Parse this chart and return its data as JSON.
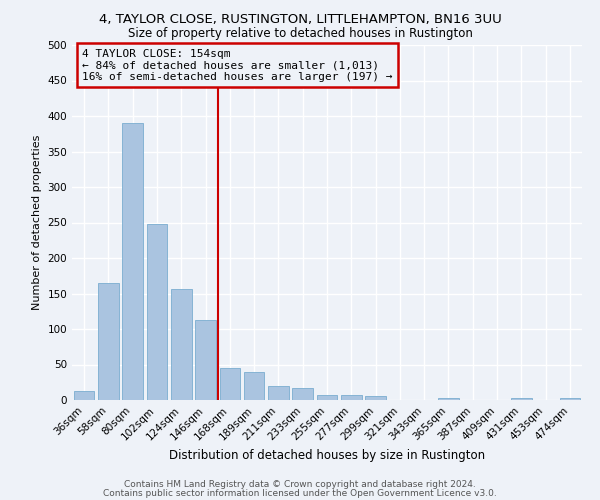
{
  "title1": "4, TAYLOR CLOSE, RUSTINGTON, LITTLEHAMPTON, BN16 3UU",
  "title2": "Size of property relative to detached houses in Rustington",
  "xlabel": "Distribution of detached houses by size in Rustington",
  "ylabel": "Number of detached properties",
  "categories": [
    "36sqm",
    "58sqm",
    "80sqm",
    "102sqm",
    "124sqm",
    "146sqm",
    "168sqm",
    "189sqm",
    "211sqm",
    "233sqm",
    "255sqm",
    "277sqm",
    "299sqm",
    "321sqm",
    "343sqm",
    "365sqm",
    "387sqm",
    "409sqm",
    "431sqm",
    "453sqm",
    "474sqm"
  ],
  "values": [
    13,
    165,
    390,
    248,
    157,
    113,
    45,
    40,
    20,
    17,
    7,
    7,
    5,
    0,
    0,
    3,
    0,
    0,
    3,
    0,
    3
  ],
  "bar_color": "#aac4e0",
  "bar_edge_color": "#7aadd0",
  "vline_color": "#cc0000",
  "annotation_title": "4 TAYLOR CLOSE: 154sqm",
  "annotation_line1": "← 84% of detached houses are smaller (1,013)",
  "annotation_line2": "16% of semi-detached houses are larger (197) →",
  "box_edge_color": "#cc0000",
  "ylim": [
    0,
    500
  ],
  "yticks": [
    0,
    50,
    100,
    150,
    200,
    250,
    300,
    350,
    400,
    450,
    500
  ],
  "footer1": "Contains HM Land Registry data © Crown copyright and database right 2024.",
  "footer2": "Contains public sector information licensed under the Open Government Licence v3.0.",
  "background_color": "#eef2f8",
  "grid_color": "#ffffff",
  "title1_fontsize": 9.5,
  "title2_fontsize": 8.5,
  "xlabel_fontsize": 8.5,
  "ylabel_fontsize": 8,
  "tick_fontsize": 7.5,
  "annot_fontsize": 8,
  "footer_fontsize": 6.5
}
